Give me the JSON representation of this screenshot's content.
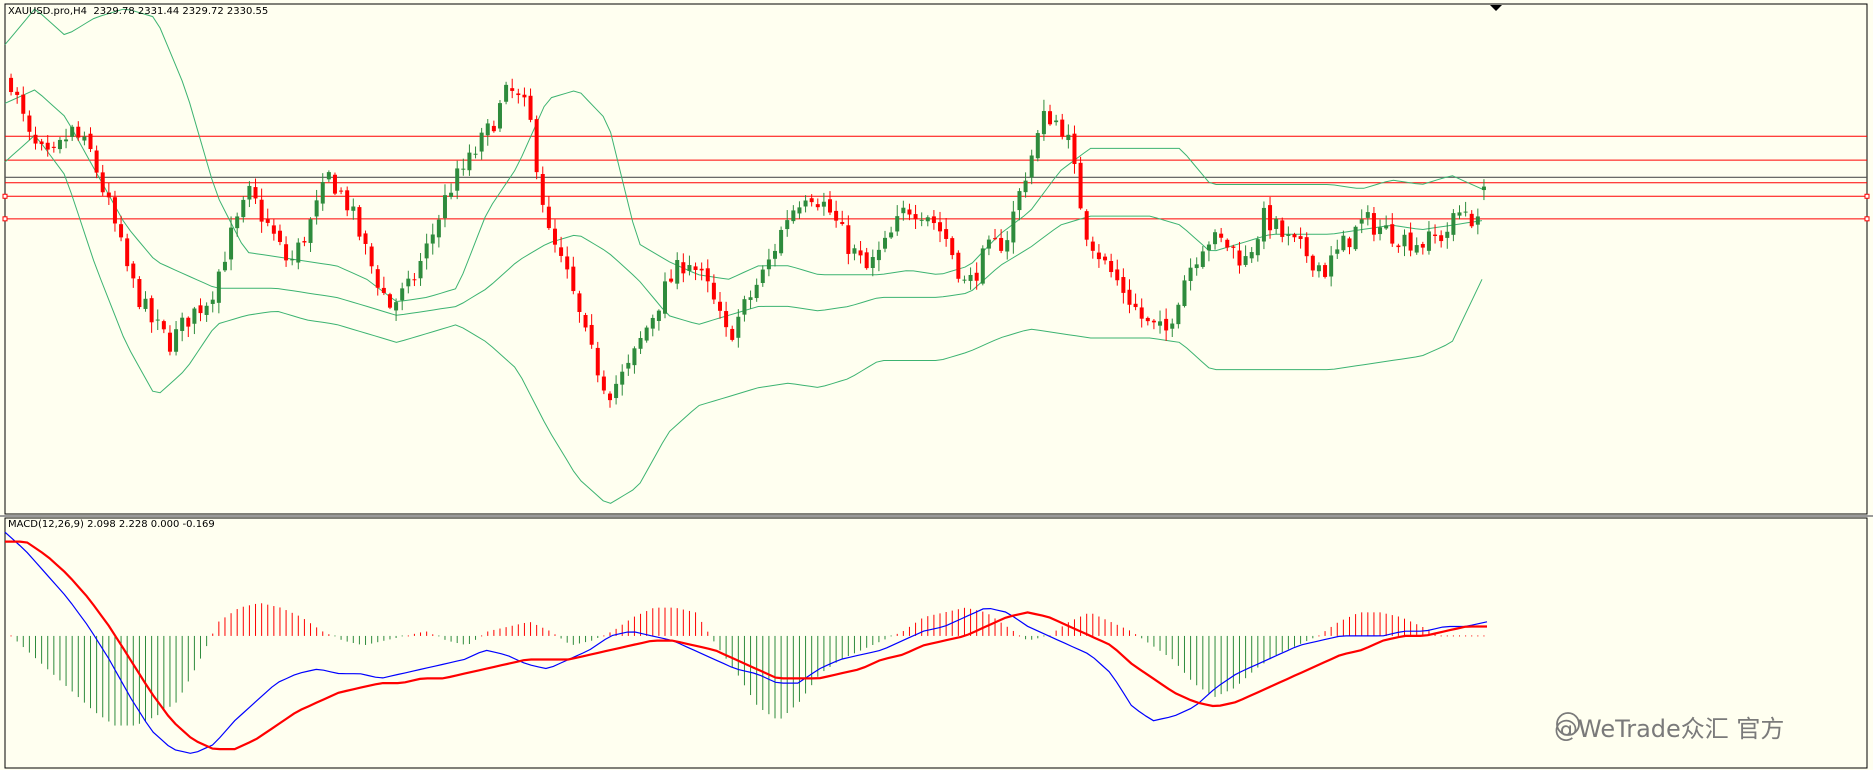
{
  "main_header": "XAUUSD.pro,H4  2329.78 2331.44 2329.72 2330.55",
  "macd_header": "MACD(12,26,9) 2.098 2.228 0.000 -0.169",
  "watermark": "@WeTrade众汇 官方",
  "colors": {
    "background": "#fffff0",
    "bull_candle": "#2e8b3c",
    "bear_candle": "#ff0000",
    "bollinger": "#3cb371",
    "level_line": "#ff0000",
    "macd_line": "#0000ff",
    "signal_line": "#ff0000",
    "hist_pos": "#ff0000",
    "hist_neg": "#2e8b3c"
  },
  "chart_data": [
    {
      "type": "candlestick",
      "symbol": "XAUUSD.pro",
      "timeframe": "H4",
      "last_bar": {
        "open": 2329.78,
        "high": 2331.44,
        "low": 2329.72,
        "close": 2330.55
      },
      "price_scale": {
        "min": 2258,
        "max": 2371
      },
      "horizontal_levels": [
        2341.7,
        2336.4,
        2331.4,
        2328.4,
        2323.4
      ],
      "current_price_line": 2332.6,
      "close_path": [
        2354,
        2340,
        2336,
        2343,
        2338,
        2325,
        2310,
        2301,
        2296,
        2302,
        2306,
        2319,
        2329,
        2321,
        2313,
        2322,
        2333,
        2326,
        2314,
        2304,
        2308,
        2318,
        2330,
        2336,
        2343,
        2352,
        2347,
        2320,
        2310,
        2295,
        2285,
        2290,
        2300,
        2309,
        2315,
        2308,
        2297,
        2305,
        2313,
        2324,
        2330,
        2326,
        2318,
        2312,
        2318,
        2326,
        2325,
        2319,
        2308,
        2316,
        2319,
        2334,
        2347,
        2343,
        2321,
        2313,
        2307,
        2300,
        2298,
        2311,
        2319,
        2318,
        2314,
        2324,
        2319,
        2316,
        2312,
        2318,
        2323,
        2321,
        2319,
        2318,
        2320,
        2326,
        2320
      ],
      "bollinger": {
        "upper_path": [
          2362,
          2370,
          2364,
          2368,
          2370,
          2368,
          2352,
          2329,
          2316,
          2315,
          2314,
          2313,
          2310,
          2305,
          2306,
          2308,
          2325,
          2335,
          2350,
          2352,
          2345,
          2318,
          2314,
          2311,
          2310,
          2313,
          2313,
          2311,
          2311,
          2311,
          2312,
          2311,
          2313,
          2320,
          2325,
          2334,
          2339,
          2339,
          2339,
          2339,
          2331,
          2331,
          2331,
          2331,
          2331,
          2330,
          2332,
          2331,
          2333,
          2330
        ],
        "middle_path": [
          2349,
          2352,
          2346,
          2334,
          2322,
          2314,
          2311,
          2308,
          2308,
          2308,
          2307,
          2306,
          2304,
          2302,
          2303,
          2304,
          2308,
          2314,
          2318,
          2320,
          2316,
          2310,
          2302,
          2300,
          2302,
          2304,
          2304,
          2303,
          2304,
          2306,
          2306,
          2306,
          2307,
          2313,
          2317,
          2322,
          2324,
          2324,
          2324,
          2322,
          2316,
          2318,
          2320,
          2320,
          2320,
          2321,
          2322,
          2321,
          2322,
          2323
        ],
        "lower_path": [
          2336,
          2342,
          2333,
          2313,
          2296,
          2284,
          2290,
          2300,
          2302,
          2303,
          2301,
          2300,
          2298,
          2296,
          2298,
          2300,
          2296,
          2290,
          2277,
          2266,
          2260,
          2264,
          2276,
          2282,
          2284,
          2286,
          2287,
          2286,
          2288,
          2292,
          2292,
          2292,
          2294,
          2297,
          2299,
          2298,
          2297,
          2297,
          2297,
          2296,
          2290,
          2290,
          2290,
          2290,
          2290,
          2291,
          2292,
          2293,
          2296,
          2310
        ]
      }
    },
    {
      "type": "line",
      "title": "MACD(12,26,9)",
      "values": {
        "main": 2.098,
        "signal": 2.228,
        "histogram": 0.0,
        "osma": -0.169
      },
      "y_scale": {
        "min": -28,
        "max": 25
      },
      "macd_path": [
        22,
        18,
        13,
        8,
        2,
        -5,
        -13,
        -20,
        -24,
        -25,
        -23,
        -18,
        -14,
        -10,
        -8,
        -7,
        -8,
        -8,
        -9,
        -8,
        -7,
        -6,
        -5,
        -3,
        -4,
        -6,
        -7,
        -5,
        -3,
        0,
        1,
        0,
        -1,
        -3,
        -5,
        -7,
        -8,
        -10,
        -10,
        -7,
        -5,
        -4,
        -3,
        -1,
        1,
        2,
        4,
        6,
        5,
        2,
        0,
        -2,
        -4,
        -8,
        -15,
        -18,
        -17,
        -15,
        -11,
        -8,
        -6,
        -4,
        -2,
        -1,
        0,
        0,
        0,
        1,
        1,
        2,
        2,
        3
      ],
      "signal_path": [
        20,
        20,
        17,
        13,
        8,
        2,
        -5,
        -12,
        -18,
        -22,
        -24,
        -24,
        -22,
        -19,
        -16,
        -14,
        -12,
        -11,
        -10,
        -10,
        -9,
        -9,
        -8,
        -7,
        -6,
        -5,
        -5,
        -5,
        -4,
        -3,
        -2,
        -1,
        -1,
        -2,
        -3,
        -5,
        -7,
        -9,
        -9,
        -9,
        -8,
        -7,
        -5,
        -4,
        -2,
        -1,
        0,
        2,
        4,
        5,
        4,
        2,
        0,
        -2,
        -6,
        -9,
        -12,
        -14,
        -15,
        -14,
        -12,
        -10,
        -8,
        -6,
        -4,
        -3,
        -1,
        0,
        0,
        1,
        2,
        2
      ],
      "histogram_path": [
        0,
        -4,
        -8,
        -12,
        -16,
        -19,
        -19,
        -17,
        -14,
        -6,
        3,
        6,
        7,
        6,
        4,
        1,
        -1,
        -2,
        -1,
        0,
        1,
        -1,
        -2,
        1,
        2,
        3,
        1,
        -2,
        -1,
        1,
        4,
        6,
        6,
        5,
        -2,
        -8,
        -15,
        -18,
        -14,
        -8,
        -5,
        -3,
        -1,
        1,
        4,
        5,
        6,
        5,
        2,
        -1,
        0,
        3,
        5,
        3,
        1,
        -2,
        -5,
        -10,
        -13,
        -11,
        -7,
        -4,
        -2,
        0,
        3,
        5,
        5,
        4,
        2,
        0,
        0,
        0
      ]
    }
  ]
}
